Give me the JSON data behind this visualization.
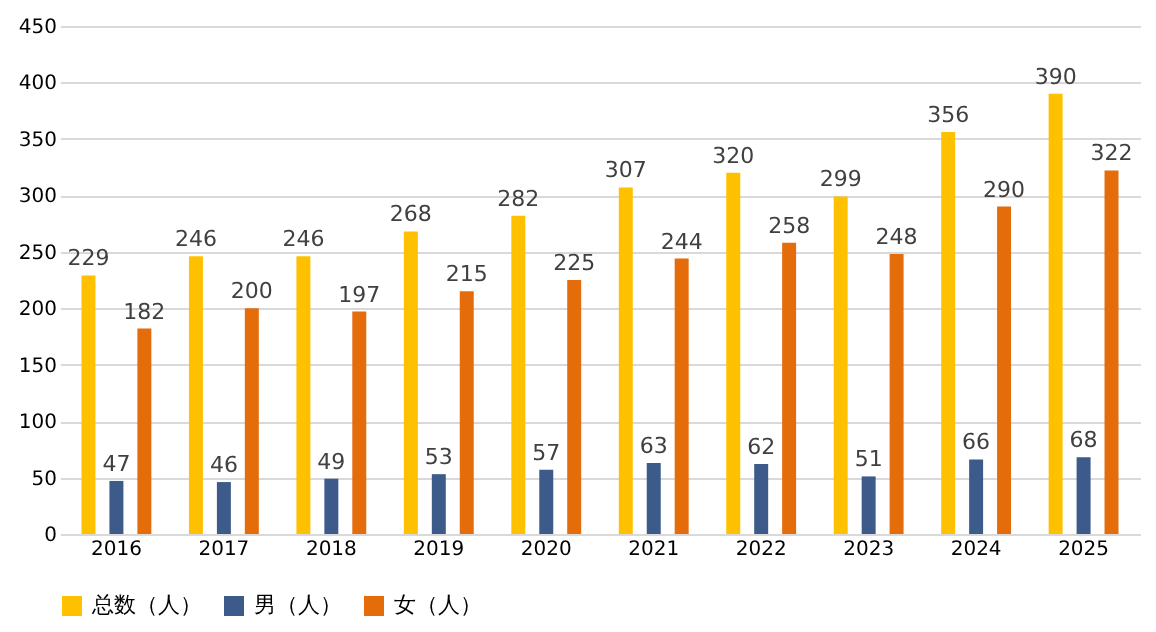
{
  "chart_data": {
    "type": "bar",
    "categories": [
      "2016",
      "2017",
      "2018",
      "2019",
      "2020",
      "2021",
      "2022",
      "2023",
      "2024",
      "2025"
    ],
    "series": [
      {
        "name": "总数（人）",
        "color": "#ffc000",
        "values": [
          229,
          246,
          246,
          268,
          282,
          307,
          320,
          299,
          356,
          390
        ]
      },
      {
        "name": "男（人）",
        "color": "#3c5a8a",
        "values": [
          47,
          46,
          49,
          53,
          57,
          63,
          62,
          51,
          66,
          68
        ]
      },
      {
        "name": "女（人）",
        "color": "#e46c0a",
        "values": [
          182,
          200,
          197,
          215,
          225,
          244,
          258,
          248,
          290,
          322
        ]
      }
    ],
    "ylim": [
      0,
      450
    ],
    "yticks": [
      0,
      50,
      100,
      150,
      200,
      250,
      300,
      350,
      400,
      450
    ],
    "grid": "y",
    "legend": "bottom",
    "data_labels": true
  }
}
